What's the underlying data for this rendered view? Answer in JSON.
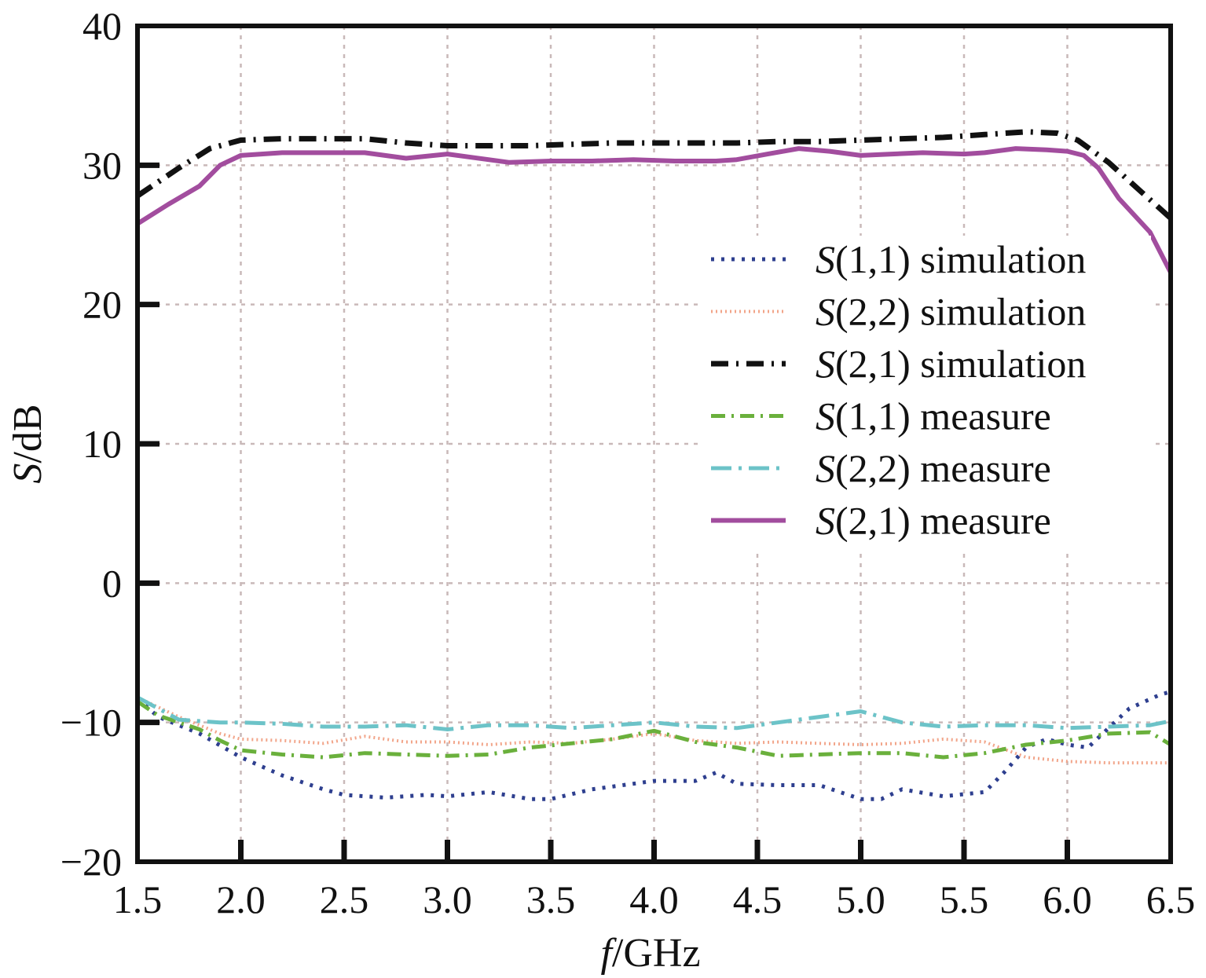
{
  "chart_data": {
    "type": "line",
    "xlabel_var": "f",
    "xlabel_unit": "/GHz",
    "ylabel_var": "S",
    "ylabel_unit": "/dB",
    "xlim": [
      1.5,
      6.5
    ],
    "ylim": [
      -20,
      40
    ],
    "x_ticks": [
      "1.5",
      "2.0",
      "2.5",
      "3.0",
      "3.5",
      "4.0",
      "4.5",
      "5.0",
      "5.5",
      "6.0",
      "6.5"
    ],
    "y_ticks": [
      "40",
      "30",
      "20",
      "10",
      "0",
      "−10",
      "−20"
    ],
    "grid": true,
    "legend_position": "right",
    "series": [
      {
        "name": "S(1,1) simulation",
        "label_var": "S",
        "label_rest": "(1,1) simulation",
        "color": "#2e3f8f",
        "dash": "4 9",
        "width": 5,
        "points": [
          [
            1.5,
            -8.3
          ],
          [
            1.6,
            -9.6
          ],
          [
            1.8,
            -10.8
          ],
          [
            2.0,
            -12.5
          ],
          [
            2.2,
            -13.8
          ],
          [
            2.4,
            -14.8
          ],
          [
            2.5,
            -15.2
          ],
          [
            2.7,
            -15.4
          ],
          [
            2.9,
            -15.2
          ],
          [
            3.0,
            -15.3
          ],
          [
            3.2,
            -15.0
          ],
          [
            3.4,
            -15.5
          ],
          [
            3.5,
            -15.5
          ],
          [
            3.7,
            -14.8
          ],
          [
            3.9,
            -14.4
          ],
          [
            4.0,
            -14.2
          ],
          [
            4.2,
            -14.2
          ],
          [
            4.3,
            -13.6
          ],
          [
            4.4,
            -14.4
          ],
          [
            4.6,
            -14.5
          ],
          [
            4.8,
            -14.5
          ],
          [
            5.0,
            -15.5
          ],
          [
            5.1,
            -15.5
          ],
          [
            5.2,
            -14.8
          ],
          [
            5.4,
            -15.3
          ],
          [
            5.6,
            -15.0
          ],
          [
            5.7,
            -13.5
          ],
          [
            5.8,
            -11.8
          ],
          [
            5.9,
            -11.2
          ],
          [
            6.0,
            -11.6
          ],
          [
            6.1,
            -11.8
          ],
          [
            6.3,
            -9.0
          ],
          [
            6.45,
            -8.0
          ],
          [
            6.5,
            -7.8
          ]
        ]
      },
      {
        "name": "S(2,2) simulation",
        "label_var": "S",
        "label_rest": "(2,2) simulation",
        "color": "#f2a58a",
        "dash": "2 4",
        "width": 4,
        "points": [
          [
            1.5,
            -8.2
          ],
          [
            1.7,
            -9.6
          ],
          [
            1.9,
            -10.8
          ],
          [
            2.0,
            -11.2
          ],
          [
            2.2,
            -11.3
          ],
          [
            2.4,
            -11.5
          ],
          [
            2.6,
            -11.0
          ],
          [
            2.8,
            -11.4
          ],
          [
            3.0,
            -11.4
          ],
          [
            3.2,
            -11.6
          ],
          [
            3.4,
            -11.4
          ],
          [
            3.6,
            -11.5
          ],
          [
            3.8,
            -11.2
          ],
          [
            4.0,
            -10.8
          ],
          [
            4.2,
            -11.3
          ],
          [
            4.4,
            -11.5
          ],
          [
            4.6,
            -11.4
          ],
          [
            4.8,
            -11.5
          ],
          [
            5.0,
            -11.6
          ],
          [
            5.2,
            -11.5
          ],
          [
            5.4,
            -11.2
          ],
          [
            5.6,
            -11.4
          ],
          [
            5.8,
            -12.5
          ],
          [
            6.0,
            -12.8
          ],
          [
            6.2,
            -12.9
          ],
          [
            6.5,
            -12.9
          ]
        ]
      },
      {
        "name": "S(2,1) simulation",
        "label_var": "S",
        "label_rest": "(2,1) simulation",
        "color": "#111111",
        "dash": "22 10 3 10",
        "width": 7,
        "points": [
          [
            1.5,
            27.8
          ],
          [
            1.7,
            29.8
          ],
          [
            1.85,
            31.2
          ],
          [
            2.0,
            31.8
          ],
          [
            2.2,
            31.9
          ],
          [
            2.4,
            31.9
          ],
          [
            2.6,
            31.9
          ],
          [
            2.8,
            31.6
          ],
          [
            3.0,
            31.4
          ],
          [
            3.2,
            31.4
          ],
          [
            3.4,
            31.4
          ],
          [
            3.6,
            31.5
          ],
          [
            3.8,
            31.6
          ],
          [
            4.0,
            31.6
          ],
          [
            4.2,
            31.6
          ],
          [
            4.4,
            31.6
          ],
          [
            4.6,
            31.7
          ],
          [
            4.8,
            31.7
          ],
          [
            5.0,
            31.8
          ],
          [
            5.2,
            31.9
          ],
          [
            5.4,
            32.0
          ],
          [
            5.6,
            32.2
          ],
          [
            5.8,
            32.4
          ],
          [
            5.95,
            32.3
          ],
          [
            6.05,
            31.8
          ],
          [
            6.2,
            30.2
          ],
          [
            6.35,
            28.2
          ],
          [
            6.5,
            26.2
          ]
        ]
      },
      {
        "name": "S(1,1) measure",
        "label_var": "S",
        "label_rest": "(1,1) measure",
        "color": "#6ab03c",
        "dash": "18 8 3 8",
        "width": 5,
        "points": [
          [
            1.5,
            -8.5
          ],
          [
            1.6,
            -9.5
          ],
          [
            1.8,
            -10.5
          ],
          [
            1.9,
            -11.3
          ],
          [
            2.0,
            -12.0
          ],
          [
            2.2,
            -12.3
          ],
          [
            2.4,
            -12.5
          ],
          [
            2.6,
            -12.2
          ],
          [
            2.8,
            -12.3
          ],
          [
            3.0,
            -12.4
          ],
          [
            3.2,
            -12.3
          ],
          [
            3.4,
            -11.8
          ],
          [
            3.6,
            -11.5
          ],
          [
            3.8,
            -11.2
          ],
          [
            4.0,
            -10.6
          ],
          [
            4.2,
            -11.4
          ],
          [
            4.4,
            -11.8
          ],
          [
            4.6,
            -12.4
          ],
          [
            4.8,
            -12.3
          ],
          [
            5.0,
            -12.2
          ],
          [
            5.2,
            -12.2
          ],
          [
            5.4,
            -12.5
          ],
          [
            5.6,
            -12.2
          ],
          [
            5.8,
            -11.6
          ],
          [
            6.0,
            -11.3
          ],
          [
            6.2,
            -10.8
          ],
          [
            6.4,
            -10.7
          ],
          [
            6.5,
            -11.6
          ]
        ]
      },
      {
        "name": "S(2,2) measure",
        "label_var": "S",
        "label_rest": "(2,2) measure",
        "color": "#6cc3c8",
        "dash": "26 9 4 9",
        "width": 5,
        "points": [
          [
            1.5,
            -8.2
          ],
          [
            1.7,
            -9.8
          ],
          [
            1.9,
            -10.0
          ],
          [
            2.0,
            -10.0
          ],
          [
            2.2,
            -10.1
          ],
          [
            2.4,
            -10.3
          ],
          [
            2.6,
            -10.3
          ],
          [
            2.8,
            -10.2
          ],
          [
            3.0,
            -10.5
          ],
          [
            3.2,
            -10.2
          ],
          [
            3.4,
            -10.2
          ],
          [
            3.6,
            -10.4
          ],
          [
            3.8,
            -10.2
          ],
          [
            4.0,
            -10.0
          ],
          [
            4.2,
            -10.3
          ],
          [
            4.4,
            -10.4
          ],
          [
            4.6,
            -10.0
          ],
          [
            4.8,
            -9.6
          ],
          [
            5.0,
            -9.2
          ],
          [
            5.2,
            -10.0
          ],
          [
            5.4,
            -10.3
          ],
          [
            5.6,
            -10.2
          ],
          [
            5.8,
            -10.2
          ],
          [
            6.0,
            -10.4
          ],
          [
            6.2,
            -10.3
          ],
          [
            6.4,
            -10.2
          ],
          [
            6.5,
            -9.9
          ]
        ]
      },
      {
        "name": "S(2,1) measure",
        "label_var": "S",
        "label_rest": "(2,1) measure",
        "color": "#a24d9e",
        "dash": "",
        "width": 6,
        "points": [
          [
            1.5,
            25.8
          ],
          [
            1.65,
            27.2
          ],
          [
            1.8,
            28.5
          ],
          [
            1.9,
            30.0
          ],
          [
            2.0,
            30.7
          ],
          [
            2.2,
            30.9
          ],
          [
            2.4,
            30.9
          ],
          [
            2.6,
            30.9
          ],
          [
            2.8,
            30.5
          ],
          [
            3.0,
            30.8
          ],
          [
            3.1,
            30.6
          ],
          [
            3.3,
            30.2
          ],
          [
            3.5,
            30.3
          ],
          [
            3.7,
            30.3
          ],
          [
            3.9,
            30.4
          ],
          [
            4.1,
            30.3
          ],
          [
            4.3,
            30.3
          ],
          [
            4.4,
            30.4
          ],
          [
            4.55,
            30.8
          ],
          [
            4.7,
            31.2
          ],
          [
            4.85,
            31.0
          ],
          [
            5.0,
            30.7
          ],
          [
            5.15,
            30.8
          ],
          [
            5.3,
            30.9
          ],
          [
            5.5,
            30.8
          ],
          [
            5.6,
            30.9
          ],
          [
            5.75,
            31.2
          ],
          [
            5.9,
            31.1
          ],
          [
            6.0,
            31.0
          ],
          [
            6.08,
            30.7
          ],
          [
            6.15,
            29.8
          ],
          [
            6.25,
            27.6
          ],
          [
            6.4,
            25.2
          ],
          [
            6.5,
            22.3
          ]
        ]
      }
    ]
  }
}
